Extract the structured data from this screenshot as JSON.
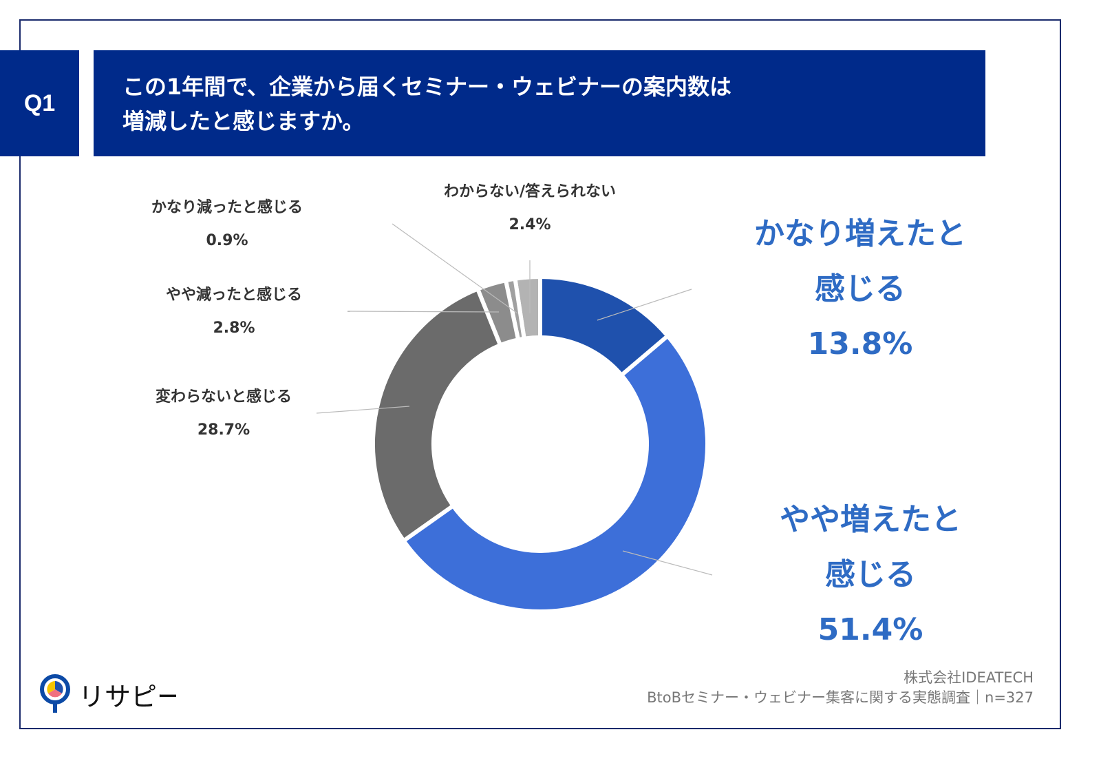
{
  "header": {
    "q_label": "Q1",
    "title_line1": "この1年間で、企業から届くセミナー・ウェビナーの案内数は",
    "title_line2": "増減したと感じますか。"
  },
  "chart_data": {
    "type": "pie",
    "donut": true,
    "categories": [
      "かなり増えたと感じる",
      "やや増えたと感じる",
      "変わらないと感じる",
      "やや減ったと感じる",
      "かなり減ったと感じる",
      "わからない/答えられない"
    ],
    "values": [
      13.8,
      51.4,
      28.7,
      2.8,
      0.9,
      2.4
    ],
    "labels": [
      "13.8%",
      "51.4%",
      "28.7%",
      "2.8%",
      "0.9%",
      "2.4%"
    ],
    "colors": [
      "#1f51ad",
      "#3d6fd9",
      "#6b6b6b",
      "#8c8c8c",
      "#a0a0a0",
      "#b3b3b3"
    ]
  },
  "labels": {
    "big1_a": "かなり増えたと",
    "big1_b": "感じる",
    "big2_a": "やや増えたと",
    "big2_b": "感じる"
  },
  "footer": {
    "company": "株式会社IDEATECH",
    "survey": "BtoBセミナー・ウェビナー集客に関する実態調査｜n=327",
    "logo_text": "リサピー"
  }
}
